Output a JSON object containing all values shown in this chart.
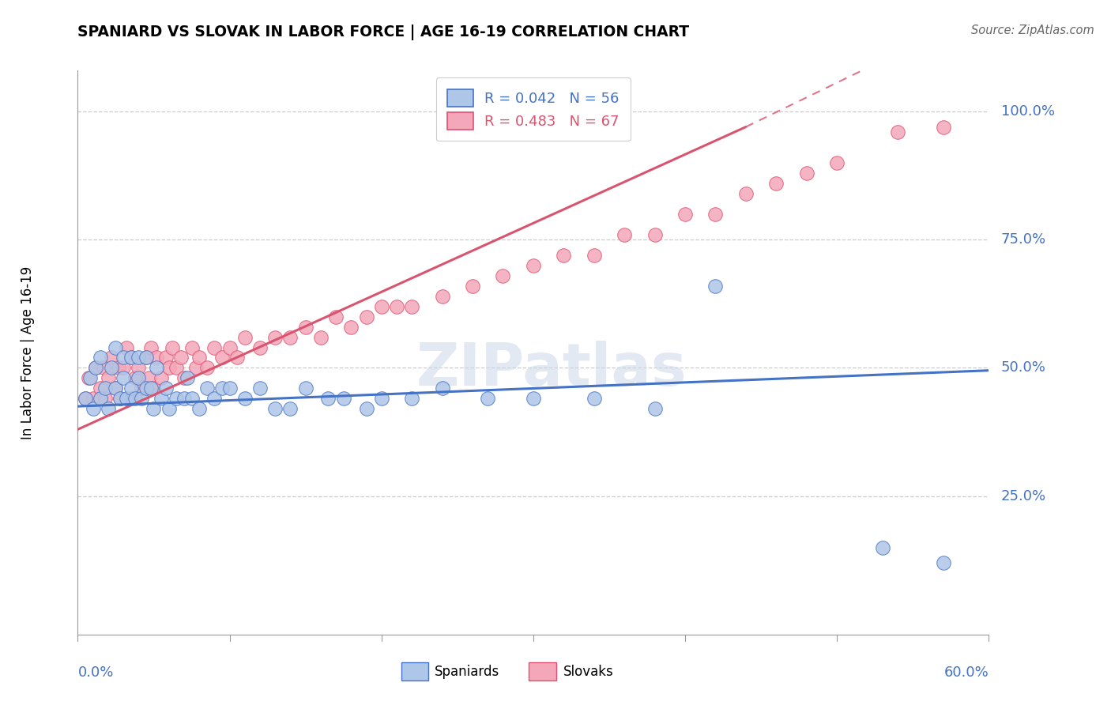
{
  "title": "SPANIARD VS SLOVAK IN LABOR FORCE | AGE 16-19 CORRELATION CHART",
  "source": "Source: ZipAtlas.com",
  "ylabel": "In Labor Force | Age 16-19",
  "xlim": [
    0.0,
    0.6
  ],
  "ylim": [
    -0.02,
    1.08
  ],
  "plot_ylim": [
    0.0,
    1.0
  ],
  "watermark": "ZIPatlas",
  "legend_spaniards": "Spaniards",
  "legend_slovaks": "Slovaks",
  "r_spaniard": 0.042,
  "n_spaniard": 56,
  "r_slovak": 0.483,
  "n_slovak": 67,
  "spaniard_color": "#aec6e8",
  "slovak_color": "#f4a7b9",
  "spaniard_edge_color": "#4472c4",
  "slovak_edge_color": "#e05070",
  "spaniard_line_color": "#4472c4",
  "slovak_line_color": "#d9546e",
  "blue_text_color": "#4472c4",
  "pink_text_color": "#d9546e",
  "grid_color": "#cccccc",
  "spaniard_x": [
    0.005,
    0.008,
    0.01,
    0.012,
    0.015,
    0.015,
    0.018,
    0.02,
    0.022,
    0.025,
    0.025,
    0.028,
    0.03,
    0.03,
    0.032,
    0.035,
    0.035,
    0.038,
    0.04,
    0.04,
    0.042,
    0.045,
    0.045,
    0.048,
    0.05,
    0.052,
    0.055,
    0.058,
    0.06,
    0.065,
    0.07,
    0.072,
    0.075,
    0.08,
    0.085,
    0.09,
    0.095,
    0.1,
    0.11,
    0.12,
    0.13,
    0.14,
    0.15,
    0.165,
    0.175,
    0.19,
    0.2,
    0.22,
    0.24,
    0.27,
    0.3,
    0.34,
    0.38,
    0.42,
    0.53,
    0.57
  ],
  "spaniard_y": [
    0.44,
    0.48,
    0.42,
    0.5,
    0.44,
    0.52,
    0.46,
    0.42,
    0.5,
    0.46,
    0.54,
    0.44,
    0.48,
    0.52,
    0.44,
    0.46,
    0.52,
    0.44,
    0.48,
    0.52,
    0.44,
    0.46,
    0.52,
    0.46,
    0.42,
    0.5,
    0.44,
    0.46,
    0.42,
    0.44,
    0.44,
    0.48,
    0.44,
    0.42,
    0.46,
    0.44,
    0.46,
    0.46,
    0.44,
    0.46,
    0.42,
    0.42,
    0.46,
    0.44,
    0.44,
    0.42,
    0.44,
    0.44,
    0.46,
    0.44,
    0.44,
    0.44,
    0.42,
    0.66,
    0.15,
    0.12
  ],
  "slovak_x": [
    0.005,
    0.007,
    0.01,
    0.012,
    0.015,
    0.017,
    0.018,
    0.02,
    0.022,
    0.025,
    0.027,
    0.028,
    0.03,
    0.032,
    0.035,
    0.035,
    0.038,
    0.04,
    0.042,
    0.045,
    0.047,
    0.048,
    0.05,
    0.052,
    0.055,
    0.058,
    0.06,
    0.062,
    0.065,
    0.068,
    0.07,
    0.075,
    0.078,
    0.08,
    0.085,
    0.09,
    0.095,
    0.1,
    0.105,
    0.11,
    0.12,
    0.13,
    0.14,
    0.15,
    0.16,
    0.17,
    0.18,
    0.19,
    0.2,
    0.21,
    0.22,
    0.24,
    0.26,
    0.28,
    0.3,
    0.32,
    0.34,
    0.36,
    0.38,
    0.4,
    0.42,
    0.44,
    0.46,
    0.48,
    0.5,
    0.54,
    0.57
  ],
  "slovak_y": [
    0.44,
    0.48,
    0.44,
    0.5,
    0.46,
    0.5,
    0.44,
    0.48,
    0.52,
    0.46,
    0.5,
    0.44,
    0.5,
    0.54,
    0.44,
    0.52,
    0.48,
    0.5,
    0.46,
    0.52,
    0.48,
    0.54,
    0.46,
    0.52,
    0.48,
    0.52,
    0.5,
    0.54,
    0.5,
    0.52,
    0.48,
    0.54,
    0.5,
    0.52,
    0.5,
    0.54,
    0.52,
    0.54,
    0.52,
    0.56,
    0.54,
    0.56,
    0.56,
    0.58,
    0.56,
    0.6,
    0.58,
    0.6,
    0.62,
    0.62,
    0.62,
    0.64,
    0.66,
    0.68,
    0.7,
    0.72,
    0.72,
    0.76,
    0.76,
    0.8,
    0.8,
    0.84,
    0.86,
    0.88,
    0.9,
    0.96,
    0.97
  ],
  "spaniard_line": [
    0.0,
    0.6,
    0.425,
    0.495
  ],
  "slovak_line_solid": [
    0.0,
    0.44,
    0.38,
    0.97
  ],
  "slovak_line_dash": [
    0.44,
    0.6,
    0.97,
    1.2
  ],
  "ytick_vals": [
    0.25,
    0.5,
    0.75,
    1.0
  ],
  "ytick_labels": [
    "25.0%",
    "50.0%",
    "75.0%",
    "100.0%"
  ]
}
